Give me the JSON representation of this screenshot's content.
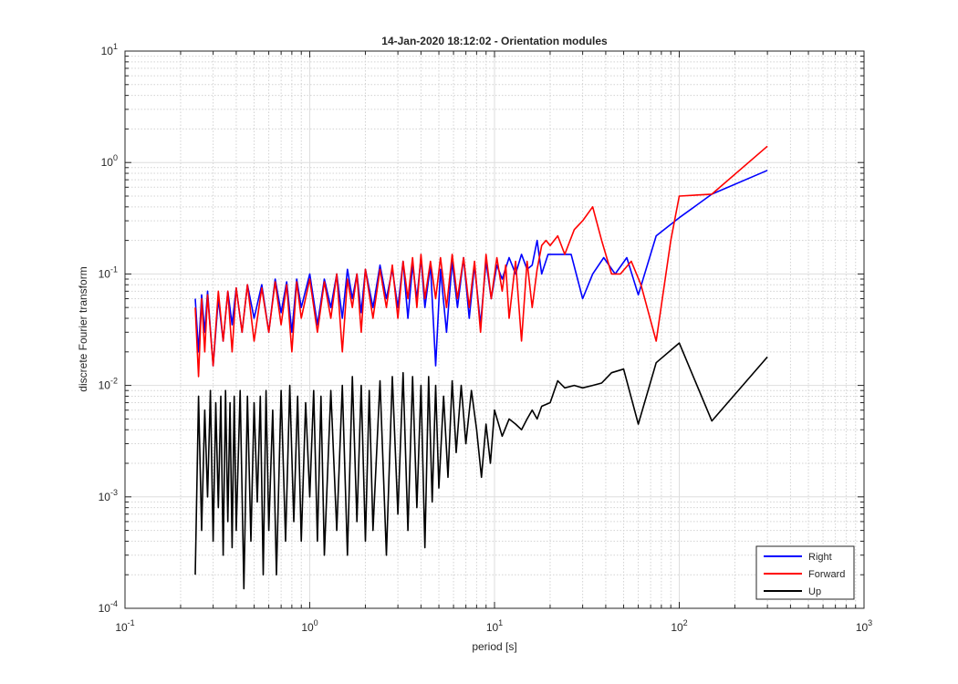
{
  "chart_data": {
    "type": "line",
    "title": "14-Jan-2020 18:12:02 - Orientation modules",
    "xlabel": "period [s]",
    "ylabel": "discrete Fourier transform",
    "xscale": "log",
    "yscale": "log",
    "xlim": [
      0.1,
      1000
    ],
    "ylim": [
      0.0001,
      10
    ],
    "grid": true,
    "minor_grid": true,
    "legend_position": "bottom-right",
    "x_tick_labels": [
      {
        "base": "10",
        "exp": "-1"
      },
      {
        "base": "10",
        "exp": "0"
      },
      {
        "base": "10",
        "exp": "1"
      },
      {
        "base": "10",
        "exp": "2"
      },
      {
        "base": "10",
        "exp": "3"
      }
    ],
    "y_tick_labels": [
      {
        "base": "10",
        "exp": "-4"
      },
      {
        "base": "10",
        "exp": "-3"
      },
      {
        "base": "10",
        "exp": "-2"
      },
      {
        "base": "10",
        "exp": "-1"
      },
      {
        "base": "10",
        "exp": "0"
      },
      {
        "base": "10",
        "exp": "1"
      }
    ],
    "series": [
      {
        "name": "Right",
        "color": "#0000ff",
        "x": [
          0.24,
          0.25,
          0.26,
          0.27,
          0.28,
          0.3,
          0.32,
          0.34,
          0.36,
          0.38,
          0.4,
          0.43,
          0.46,
          0.5,
          0.55,
          0.6,
          0.65,
          0.7,
          0.75,
          0.8,
          0.85,
          0.9,
          1.0,
          1.1,
          1.2,
          1.3,
          1.4,
          1.5,
          1.6,
          1.7,
          1.8,
          1.9,
          2.0,
          2.2,
          2.4,
          2.6,
          2.8,
          3.0,
          3.2,
          3.4,
          3.6,
          3.8,
          4.0,
          4.2,
          4.5,
          4.8,
          5.1,
          5.5,
          5.9,
          6.3,
          6.8,
          7.3,
          7.8,
          8.4,
          9.0,
          9.6,
          10.3,
          11.0,
          12.0,
          13.0,
          14.0,
          15.0,
          16.0,
          17.0,
          18.0,
          19.5,
          21.0,
          23.0,
          26.0,
          30.0,
          34.0,
          39.0,
          45.0,
          52.0,
          60.0,
          75.0,
          100.0,
          150.0,
          300.0
        ],
        "y": [
          0.06,
          0.02,
          0.065,
          0.03,
          0.07,
          0.015,
          0.06,
          0.025,
          0.07,
          0.035,
          0.075,
          0.03,
          0.08,
          0.04,
          0.08,
          0.03,
          0.09,
          0.045,
          0.085,
          0.03,
          0.09,
          0.05,
          0.1,
          0.035,
          0.09,
          0.05,
          0.1,
          0.04,
          0.11,
          0.06,
          0.1,
          0.045,
          0.11,
          0.05,
          0.12,
          0.06,
          0.11,
          0.05,
          0.13,
          0.04,
          0.12,
          0.06,
          0.14,
          0.05,
          0.12,
          0.015,
          0.11,
          0.03,
          0.13,
          0.05,
          0.14,
          0.04,
          0.12,
          0.035,
          0.13,
          0.06,
          0.12,
          0.09,
          0.14,
          0.1,
          0.15,
          0.11,
          0.12,
          0.2,
          0.1,
          0.15,
          0.15,
          0.15,
          0.15,
          0.06,
          0.1,
          0.14,
          0.1,
          0.14,
          0.065,
          0.22,
          0.32,
          0.52,
          0.85
        ]
      },
      {
        "name": "Forward",
        "color": "#ff0000",
        "x": [
          0.24,
          0.25,
          0.26,
          0.27,
          0.28,
          0.3,
          0.32,
          0.34,
          0.36,
          0.38,
          0.4,
          0.43,
          0.46,
          0.5,
          0.55,
          0.6,
          0.65,
          0.7,
          0.75,
          0.8,
          0.85,
          0.9,
          1.0,
          1.1,
          1.2,
          1.3,
          1.4,
          1.5,
          1.6,
          1.7,
          1.8,
          1.9,
          2.0,
          2.2,
          2.4,
          2.6,
          2.8,
          3.0,
          3.2,
          3.4,
          3.6,
          3.8,
          4.0,
          4.2,
          4.5,
          4.8,
          5.1,
          5.5,
          5.9,
          6.3,
          6.8,
          7.3,
          7.8,
          8.4,
          9.0,
          9.6,
          10.3,
          11.0,
          11.5,
          12.0,
          13.0,
          14.0,
          15.0,
          16.0,
          17.0,
          18.0,
          19.0,
          20.0,
          22.0,
          24.0,
          27.0,
          30.0,
          34.0,
          38.0,
          43.0,
          48.0,
          55.0,
          62.0,
          75.0,
          90.0,
          100.0,
          150.0,
          300.0
        ],
        "y": [
          0.05,
          0.012,
          0.06,
          0.02,
          0.065,
          0.015,
          0.07,
          0.025,
          0.07,
          0.02,
          0.075,
          0.03,
          0.08,
          0.025,
          0.075,
          0.03,
          0.085,
          0.035,
          0.08,
          0.02,
          0.085,
          0.04,
          0.09,
          0.03,
          0.085,
          0.04,
          0.1,
          0.02,
          0.09,
          0.05,
          0.1,
          0.03,
          0.11,
          0.04,
          0.11,
          0.05,
          0.12,
          0.04,
          0.13,
          0.06,
          0.14,
          0.05,
          0.15,
          0.06,
          0.13,
          0.06,
          0.14,
          0.05,
          0.15,
          0.06,
          0.14,
          0.05,
          0.13,
          0.03,
          0.15,
          0.06,
          0.14,
          0.07,
          0.12,
          0.04,
          0.13,
          0.025,
          0.13,
          0.05,
          0.11,
          0.18,
          0.2,
          0.18,
          0.22,
          0.15,
          0.25,
          0.3,
          0.4,
          0.2,
          0.1,
          0.1,
          0.13,
          0.08,
          0.025,
          0.2,
          0.5,
          0.52,
          1.4
        ]
      },
      {
        "name": "Up",
        "color": "#000000",
        "x": [
          0.24,
          0.25,
          0.26,
          0.27,
          0.28,
          0.29,
          0.3,
          0.31,
          0.32,
          0.33,
          0.34,
          0.35,
          0.36,
          0.37,
          0.38,
          0.39,
          0.4,
          0.42,
          0.44,
          0.46,
          0.48,
          0.5,
          0.52,
          0.54,
          0.56,
          0.58,
          0.6,
          0.63,
          0.66,
          0.7,
          0.74,
          0.78,
          0.82,
          0.86,
          0.9,
          0.95,
          1.0,
          1.05,
          1.1,
          1.15,
          1.2,
          1.3,
          1.4,
          1.5,
          1.6,
          1.7,
          1.8,
          1.9,
          2.0,
          2.1,
          2.2,
          2.4,
          2.6,
          2.8,
          3.0,
          3.2,
          3.4,
          3.6,
          3.8,
          4.0,
          4.2,
          4.4,
          4.6,
          4.8,
          5.0,
          5.3,
          5.6,
          5.9,
          6.2,
          6.6,
          7.0,
          7.5,
          8.0,
          8.5,
          9.0,
          9.5,
          10.0,
          11.0,
          12.0,
          13.0,
          14.0,
          15.0,
          16.0,
          17.0,
          18.0,
          20.0,
          22.0,
          24.0,
          27.0,
          30.0,
          34.0,
          38.0,
          43.0,
          50.0,
          60.0,
          75.0,
          100.0,
          150.0,
          300.0
        ],
        "y": [
          0.0002,
          0.008,
          0.0005,
          0.006,
          0.001,
          0.009,
          0.0004,
          0.007,
          0.0008,
          0.008,
          0.0003,
          0.009,
          0.0006,
          0.007,
          0.00035,
          0.008,
          0.0005,
          0.009,
          0.00015,
          0.008,
          0.0004,
          0.007,
          0.0009,
          0.008,
          0.0002,
          0.009,
          0.0005,
          0.006,
          0.0002,
          0.009,
          0.0004,
          0.01,
          0.0006,
          0.008,
          0.0004,
          0.007,
          0.001,
          0.009,
          0.0004,
          0.008,
          0.0003,
          0.009,
          0.0005,
          0.01,
          0.0003,
          0.012,
          0.0006,
          0.01,
          0.0004,
          0.009,
          0.0005,
          0.011,
          0.0003,
          0.012,
          0.0007,
          0.013,
          0.0005,
          0.012,
          0.0008,
          0.01,
          0.00035,
          0.012,
          0.0009,
          0.01,
          0.0012,
          0.008,
          0.0015,
          0.011,
          0.0025,
          0.01,
          0.003,
          0.009,
          0.004,
          0.0015,
          0.0045,
          0.002,
          0.006,
          0.0035,
          0.005,
          0.0045,
          0.004,
          0.005,
          0.006,
          0.005,
          0.0065,
          0.007,
          0.011,
          0.0095,
          0.01,
          0.0095,
          0.01,
          0.0105,
          0.013,
          0.014,
          0.0045,
          0.016,
          0.024,
          0.0048,
          0.018
        ]
      }
    ]
  }
}
